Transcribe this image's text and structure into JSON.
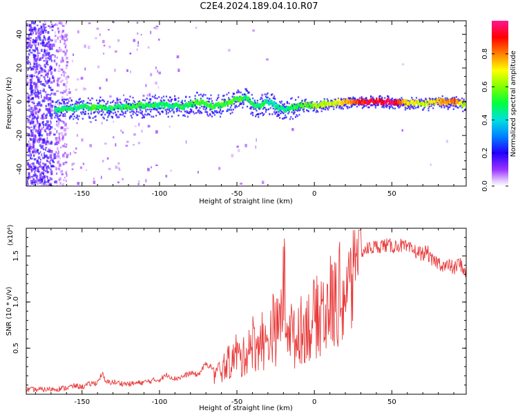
{
  "title": "C2E4.2024.189.04.10.R07",
  "chart_data": [
    {
      "type": "heatmap",
      "xlabel": "Height of straight line (km)",
      "ylabel": "Frequency (Hz)",
      "xlim": [
        -186,
        98
      ],
      "ylim": [
        -50,
        48
      ],
      "x_ticks": [
        -150,
        -100,
        -50,
        0,
        50
      ],
      "y_ticks": [
        -40,
        -20,
        0,
        20,
        40
      ],
      "colorbar": {
        "label": "Normalized spectral amplitude",
        "range": [
          0,
          1
        ],
        "ticks": [
          "0.0",
          "0.2",
          "0.4",
          "0.6",
          "0.8"
        ],
        "colors": [
          "#ffffff",
          "#cc99ff",
          "#7f00ff",
          "#0000ff",
          "#00ffff",
          "#00ff00",
          "#ffff00",
          "#ff8000",
          "#ff0000",
          "#ff1493"
        ]
      },
      "ridge": {
        "description_points_x": [
          -170,
          -150,
          -135,
          -110,
          -95,
          -85,
          -75,
          -65,
          -55,
          -45,
          -38,
          -30,
          -20,
          -10,
          0,
          10,
          20,
          30,
          40,
          50,
          60,
          70,
          80,
          90,
          98
        ],
        "frequency": [
          -5,
          -3,
          -4,
          -2,
          -2,
          -3,
          0,
          -3,
          0,
          3,
          -3,
          0,
          -5,
          -2,
          -2,
          -1,
          0,
          0,
          0,
          0,
          -1,
          -1,
          0,
          0,
          -2
        ],
        "amplitude": [
          0.45,
          0.5,
          0.5,
          0.5,
          0.45,
          0.5,
          0.55,
          0.5,
          0.55,
          0.5,
          0.5,
          0.45,
          0.45,
          0.55,
          0.6,
          0.65,
          0.75,
          0.9,
          0.95,
          0.95,
          0.7,
          0.65,
          0.75,
          0.8,
          0.6
        ]
      }
    },
    {
      "type": "line",
      "xlabel": "Height of straight line (km)",
      "ylabel": "SNR (10 * v/v)",
      "y_multiplier": "(x10⁴)",
      "xlim": [
        -186,
        98
      ],
      "ylim": [
        0,
        1.8
      ],
      "x_ticks": [
        -150,
        -100,
        -50,
        0,
        50
      ],
      "y_ticks": [
        "0.5",
        "1.0",
        "1.5"
      ],
      "color": "#e83a3a",
      "series": [
        {
          "x": [
            -186,
            -175,
            -165,
            -160,
            -155,
            -150,
            -145,
            -140,
            -137,
            -135,
            -130,
            -120,
            -110,
            -100,
            -95,
            -90,
            -85,
            -80,
            -75,
            -70,
            -65,
            -60,
            -55,
            -52,
            -50,
            -47,
            -45,
            -42,
            -40,
            -37,
            -35,
            -32,
            -30,
            -27,
            -25,
            -22,
            -20,
            -18,
            -15,
            -12,
            -10,
            -7,
            -5,
            -2,
            0,
            3,
            5,
            8,
            10,
            13,
            15,
            18,
            20,
            23,
            25,
            28,
            30,
            35,
            40,
            45,
            50,
            55,
            60,
            65,
            70,
            73,
            75,
            80,
            85,
            88,
            90,
            93,
            95,
            98
          ],
          "y": [
            0.02,
            0.02,
            0.03,
            0.04,
            0.06,
            0.05,
            0.08,
            0.1,
            0.2,
            0.1,
            0.1,
            0.08,
            0.1,
            0.13,
            0.18,
            0.14,
            0.16,
            0.2,
            0.18,
            0.3,
            0.25,
            0.35,
            0.45,
            0.5,
            0.6,
            0.45,
            0.55,
            0.7,
            0.75,
            0.6,
            0.9,
            0.65,
            0.75,
            0.95,
            0.85,
            1.0,
            1.6,
            1.1,
            0.9,
            0.7,
            0.95,
            0.85,
            1.05,
            0.9,
            1.1,
            1.05,
            1.25,
            1.1,
            1.3,
            1.25,
            1.4,
            1.35,
            1.45,
            1.45,
            1.5,
            1.52,
            1.55,
            1.58,
            1.6,
            1.62,
            1.6,
            1.62,
            1.58,
            1.55,
            1.52,
            1.55,
            1.45,
            1.43,
            1.38,
            1.4,
            1.35,
            1.42,
            1.4,
            1.3
          ]
        }
      ]
    }
  ]
}
